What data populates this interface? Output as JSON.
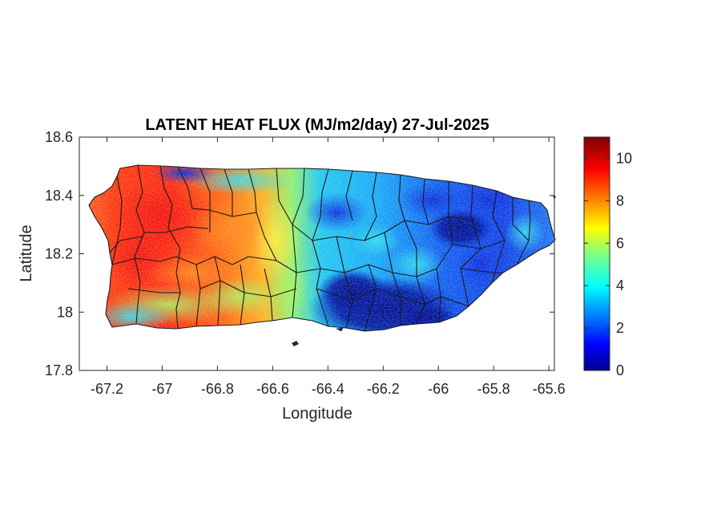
{
  "title": "LATENT HEAT FLUX (MJ/m2/day) 27-Jul-2025",
  "xlabel": "Longitude",
  "ylabel": "Latitude",
  "x_ticks": [
    "-67.2",
    "-67",
    "-66.8",
    "-66.6",
    "-66.4",
    "-66.2",
    "-66",
    "-65.8",
    "-65.6"
  ],
  "y_ticks": [
    "18.6",
    "18.4",
    "18.2",
    "18",
    "17.8"
  ],
  "colorbar_ticks": [
    "10",
    "8",
    "6",
    "4",
    "2",
    "0"
  ],
  "colormap": "jet",
  "colorbar_range": [
    0,
    11
  ],
  "chart_data": {
    "type": "heatmap",
    "title": "LATENT HEAT FLUX (MJ/m2/day) 27-Jul-2025",
    "xlabel": "Longitude",
    "ylabel": "Latitude",
    "xlim": [
      -67.3,
      -65.58
    ],
    "ylim": [
      17.8,
      18.6
    ],
    "x_tick_values": [
      -67.2,
      -67,
      -66.8,
      -66.6,
      -66.4,
      -66.2,
      -66,
      -65.8,
      -65.6
    ],
    "y_tick_values": [
      18.6,
      18.4,
      18.2,
      18,
      17.8
    ],
    "colorbar": {
      "min": 0,
      "max": 11,
      "ticks": [
        0,
        2,
        4,
        6,
        8,
        10
      ],
      "colormap": "jet"
    },
    "regions": [
      {
        "lon": -67.15,
        "lat": 18.35,
        "value": 9
      },
      {
        "lon": -67.05,
        "lat": 18.3,
        "value": 9.5
      },
      {
        "lon": -66.95,
        "lat": 18.3,
        "value": 9
      },
      {
        "lon": -66.8,
        "lat": 18.28,
        "value": 8.5
      },
      {
        "lon": -66.7,
        "lat": 18.25,
        "value": 7.5
      },
      {
        "lon": -67.15,
        "lat": 18.15,
        "value": 9
      },
      {
        "lon": -67.05,
        "lat": 18.05,
        "value": 6
      },
      {
        "lon": -66.85,
        "lat": 18.1,
        "value": 6.5
      },
      {
        "lon": -66.7,
        "lat": 18.05,
        "value": 5
      },
      {
        "lon": -66.55,
        "lat": 18.3,
        "value": 5
      },
      {
        "lon": -66.4,
        "lat": 18.35,
        "value": 2
      },
      {
        "lon": -66.3,
        "lat": 18.33,
        "value": 3
      },
      {
        "lon": -66.2,
        "lat": 18.2,
        "value": 4
      },
      {
        "lon": -66.45,
        "lat": 18.2,
        "value": 4
      },
      {
        "lon": -66.3,
        "lat": 18.03,
        "value": 0.5
      },
      {
        "lon": -66.1,
        "lat": 18.02,
        "value": 1.5
      },
      {
        "lon": -66.0,
        "lat": 18.3,
        "value": 2
      },
      {
        "lon": -65.9,
        "lat": 18.28,
        "value": 1.5
      },
      {
        "lon": -65.85,
        "lat": 18.1,
        "value": 2.5
      },
      {
        "lon": -65.7,
        "lat": 18.3,
        "value": 2.5
      },
      {
        "lon": -66.9,
        "lat": 18.46,
        "value": 2
      },
      {
        "lon": -67.0,
        "lat": 18.0,
        "value": 4
      }
    ]
  }
}
